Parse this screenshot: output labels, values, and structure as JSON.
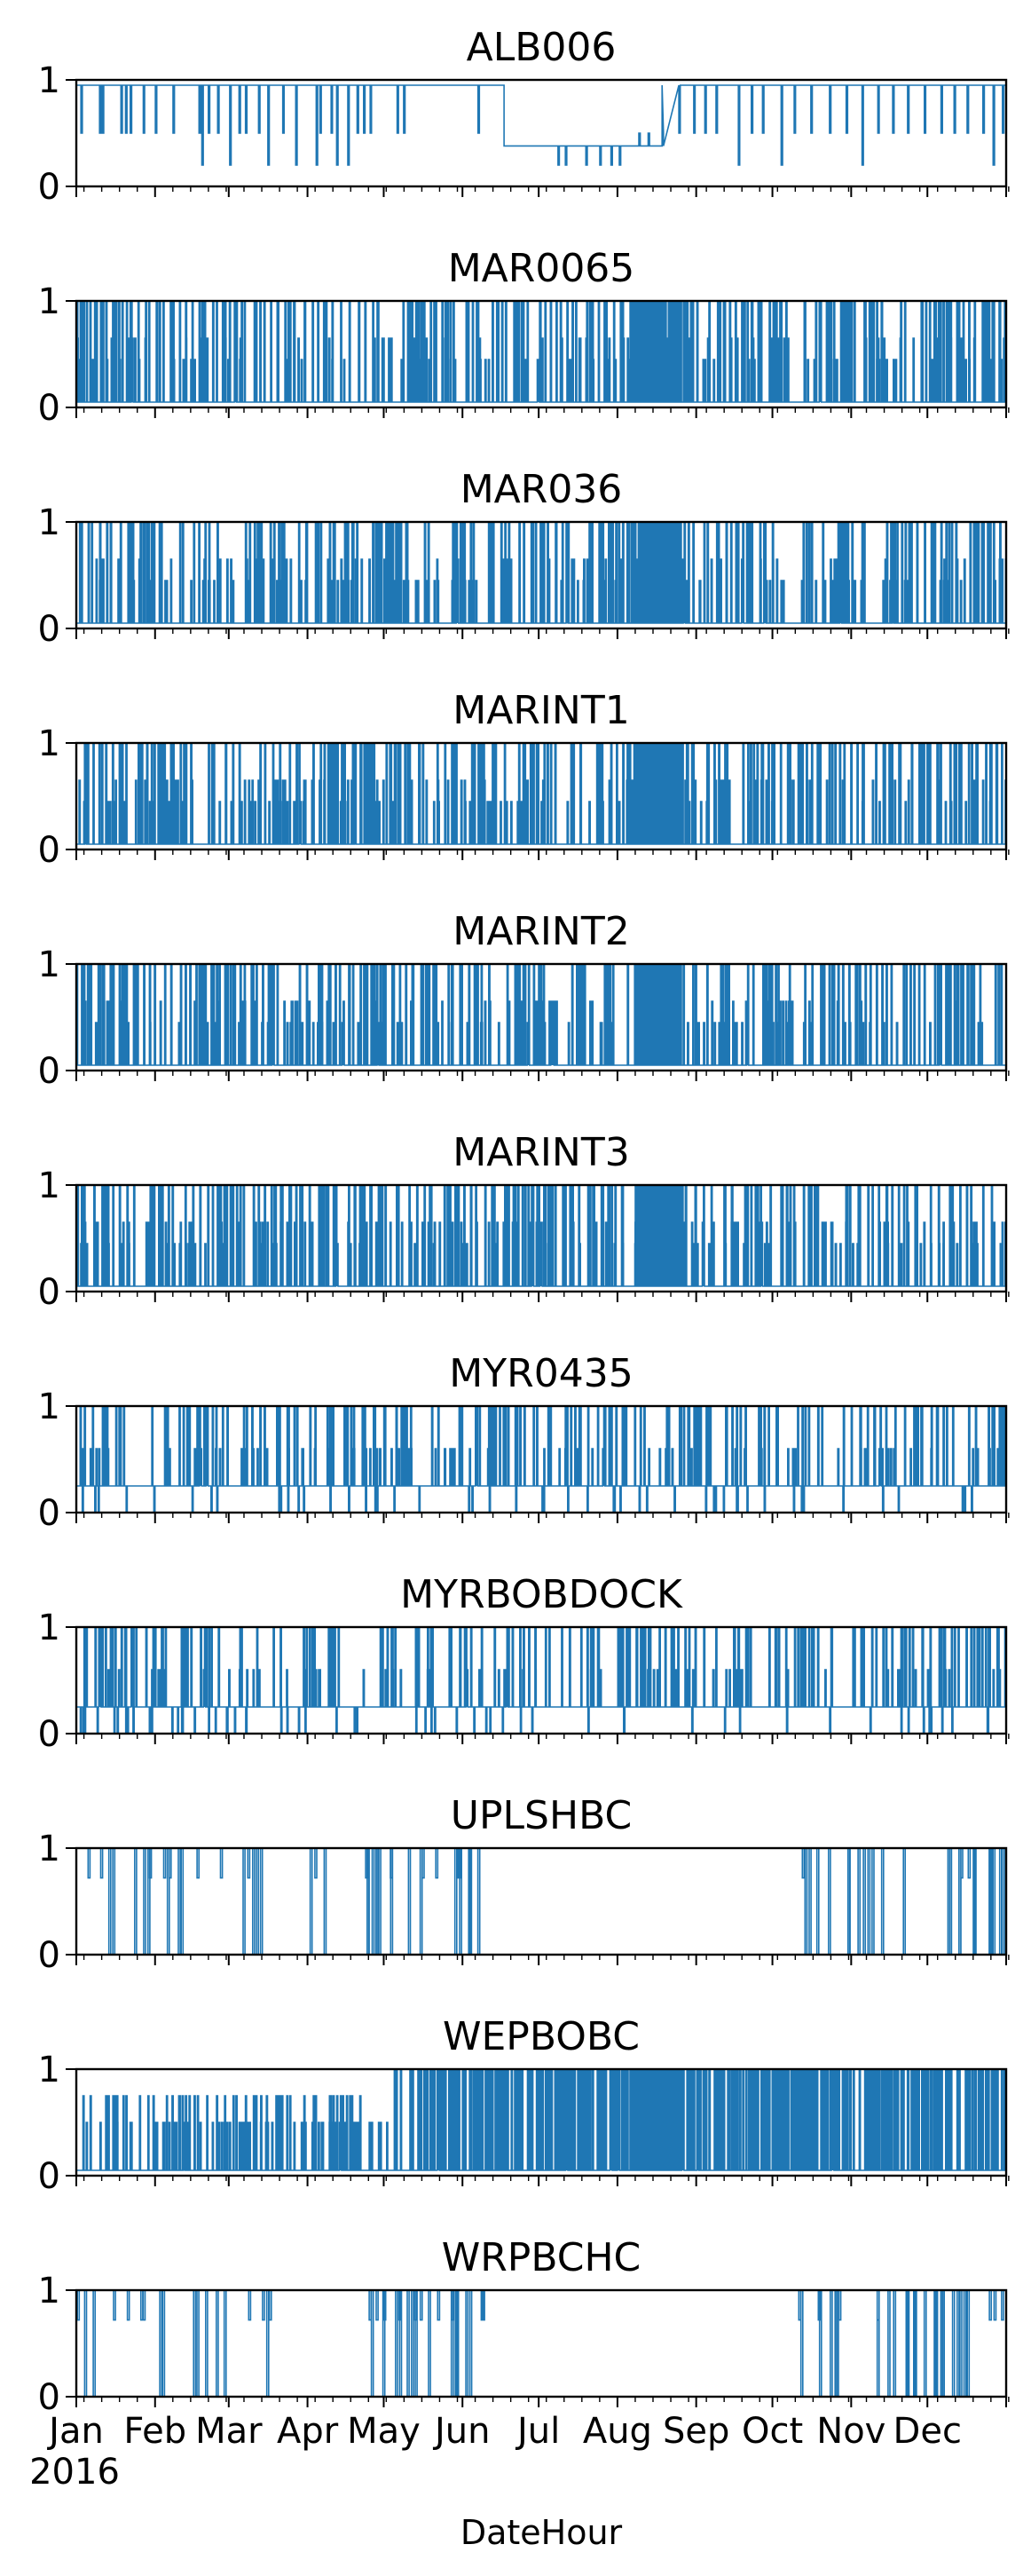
{
  "chart_data": [
    {
      "type": "line",
      "title": "ALB006",
      "ylim": [
        0,
        1
      ],
      "yticks": [
        "0",
        "1"
      ],
      "baseline_segments": [
        {
          "x_frac": [
            0.0,
            0.46
          ],
          "level": 0.95
        },
        {
          "x_frac": [
            0.46,
            0.63
          ],
          "level": 0.38
        },
        {
          "x_frac": [
            0.63,
            1.0
          ],
          "level": 0.95
        }
      ],
      "series": [
        {
          "baseline": 0.95,
          "events": [
            {
              "x": 0.005,
              "y": 0.5
            },
            {
              "x": 0.025,
              "y": 0.5
            },
            {
              "x": 0.028,
              "y": 0.5
            },
            {
              "x": 0.048,
              "y": 0.5
            },
            {
              "x": 0.053,
              "y": 0.5
            },
            {
              "x": 0.058,
              "y": 0.5
            },
            {
              "x": 0.072,
              "y": 0.5
            },
            {
              "x": 0.085,
              "y": 0.5
            },
            {
              "x": 0.104,
              "y": 0.5
            },
            {
              "x": 0.132,
              "y": 0.5
            },
            {
              "x": 0.135,
              "y": 0.2
            },
            {
              "x": 0.142,
              "y": 0.5
            },
            {
              "x": 0.152,
              "y": 0.5
            },
            {
              "x": 0.165,
              "y": 0.2
            },
            {
              "x": 0.175,
              "y": 0.5
            },
            {
              "x": 0.182,
              "y": 0.5
            },
            {
              "x": 0.196,
              "y": 0.5
            },
            {
              "x": 0.206,
              "y": 0.2
            },
            {
              "x": 0.222,
              "y": 0.5
            },
            {
              "x": 0.236,
              "y": 0.2
            },
            {
              "x": 0.258,
              "y": 0.2
            },
            {
              "x": 0.262,
              "y": 0.5
            },
            {
              "x": 0.274,
              "y": 0.5
            },
            {
              "x": 0.28,
              "y": 0.2
            },
            {
              "x": 0.292,
              "y": 0.2
            },
            {
              "x": 0.302,
              "y": 0.5
            },
            {
              "x": 0.309,
              "y": 0.5
            },
            {
              "x": 0.316,
              "y": 0.5
            },
            {
              "x": 0.345,
              "y": 0.5
            },
            {
              "x": 0.352,
              "y": 0.5
            },
            {
              "x": 0.432,
              "y": 0.5
            },
            {
              "x": 0.518,
              "y": 0.2
            },
            {
              "x": 0.526,
              "y": 0.2
            },
            {
              "x": 0.548,
              "y": 0.2
            },
            {
              "x": 0.563,
              "y": 0.2
            },
            {
              "x": 0.575,
              "y": 0.2
            },
            {
              "x": 0.584,
              "y": 0.2
            },
            {
              "x": 0.605,
              "y": 0.5
            },
            {
              "x": 0.615,
              "y": 0.5
            },
            {
              "x": 0.63,
              "y": 0.5
            },
            {
              "x": 0.648,
              "y": 0.5
            },
            {
              "x": 0.664,
              "y": 0.5
            },
            {
              "x": 0.676,
              "y": 0.5
            },
            {
              "x": 0.688,
              "y": 0.5
            },
            {
              "x": 0.712,
              "y": 0.2
            },
            {
              "x": 0.726,
              "y": 0.5
            },
            {
              "x": 0.738,
              "y": 0.5
            },
            {
              "x": 0.758,
              "y": 0.2
            },
            {
              "x": 0.772,
              "y": 0.5
            },
            {
              "x": 0.79,
              "y": 0.5
            },
            {
              "x": 0.81,
              "y": 0.5
            },
            {
              "x": 0.828,
              "y": 0.5
            },
            {
              "x": 0.845,
              "y": 0.2
            },
            {
              "x": 0.862,
              "y": 0.5
            },
            {
              "x": 0.878,
              "y": 0.5
            },
            {
              "x": 0.894,
              "y": 0.5
            },
            {
              "x": 0.912,
              "y": 0.5
            },
            {
              "x": 0.93,
              "y": 0.5
            },
            {
              "x": 0.944,
              "y": 0.5
            },
            {
              "x": 0.958,
              "y": 0.5
            },
            {
              "x": 0.975,
              "y": 0.5
            },
            {
              "x": 0.986,
              "y": 0.2
            },
            {
              "x": 0.996,
              "y": 0.5
            }
          ]
        }
      ]
    },
    {
      "type": "line",
      "title": "MAR0065",
      "ylim": [
        0,
        1
      ],
      "yticks": [
        "0",
        "1"
      ],
      "pattern": "dense",
      "baseline": 0.05
    },
    {
      "type": "line",
      "title": "MAR036",
      "ylim": [
        0,
        1
      ],
      "yticks": [
        "0",
        "1"
      ],
      "pattern": "dense",
      "baseline": 0.05
    },
    {
      "type": "line",
      "title": "MARINT1",
      "ylim": [
        0,
        1
      ],
      "yticks": [
        "0",
        "1"
      ],
      "pattern": "dense",
      "baseline": 0.05
    },
    {
      "type": "line",
      "title": "MARINT2",
      "ylim": [
        0,
        1
      ],
      "yticks": [
        "0",
        "1"
      ],
      "pattern": "dense",
      "baseline": 0.05
    },
    {
      "type": "line",
      "title": "MARINT3",
      "ylim": [
        0,
        1
      ],
      "yticks": [
        "0",
        "1"
      ],
      "pattern": "dense",
      "baseline": 0.05
    },
    {
      "type": "line",
      "title": "MYR0435",
      "ylim": [
        0,
        1
      ],
      "yticks": [
        "0",
        "1"
      ],
      "pattern": "mid",
      "baseline": 0.25
    },
    {
      "type": "line",
      "title": "MYRBOBDOCK",
      "ylim": [
        0,
        1
      ],
      "yticks": [
        "0",
        "1"
      ],
      "pattern": "mid",
      "baseline": 0.25
    },
    {
      "type": "line",
      "title": "UPLSHBC",
      "ylim": [
        0,
        1
      ],
      "yticks": [
        "0",
        "1"
      ],
      "pattern": "sparse",
      "baseline": 1.0
    },
    {
      "type": "line",
      "title": "WEPBOBC",
      "ylim": [
        0,
        1
      ],
      "yticks": [
        "0",
        "1"
      ],
      "pattern": "wep",
      "baseline": 0.05
    },
    {
      "type": "line",
      "title": "WRPBCHC",
      "ylim": [
        0,
        1
      ],
      "yticks": [
        "0",
        "1"
      ],
      "pattern": "sparse",
      "baseline": 1.0
    }
  ],
  "x_axis": {
    "ticks": [
      "Jan",
      "Feb",
      "Mar",
      "Apr",
      "May",
      "Jun",
      "Jul",
      "Aug",
      "Sep",
      "Oct",
      "Nov",
      "Dec"
    ],
    "year": "2016",
    "label": "DateHour"
  },
  "colors": {
    "series": "#1f77b4",
    "axis": "#000000"
  }
}
